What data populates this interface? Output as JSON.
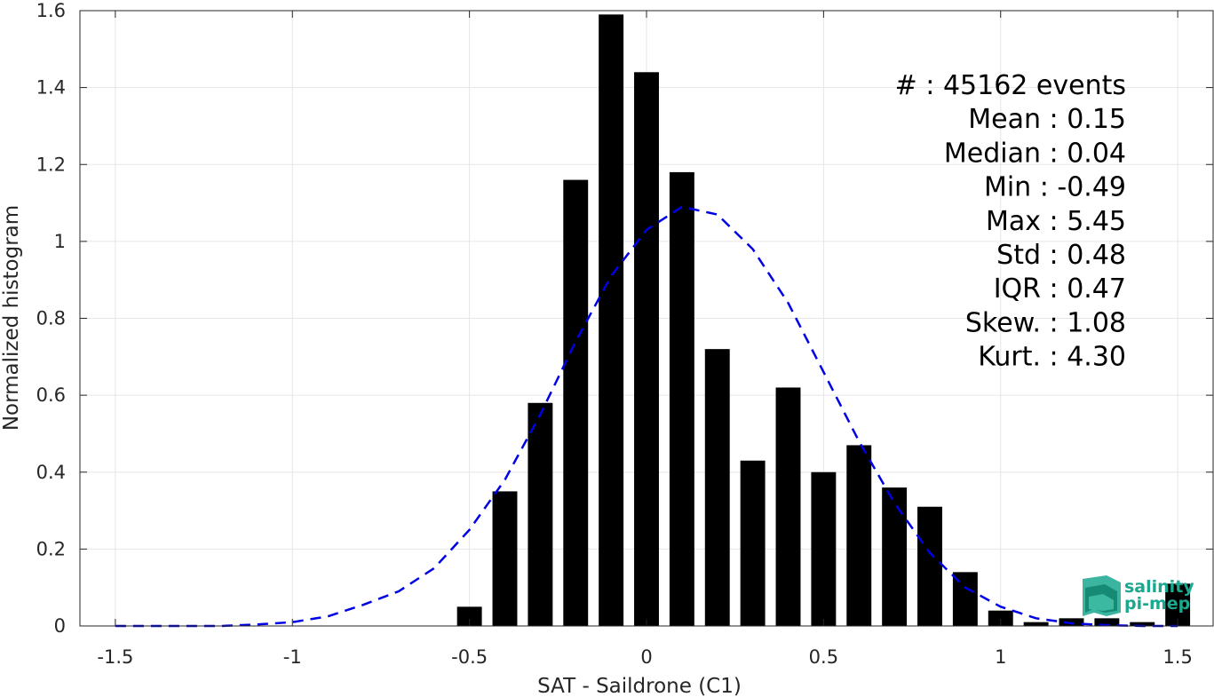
{
  "chart_data": {
    "type": "bar",
    "title": "",
    "xlabel": "SAT - Saildrone (C1)",
    "ylabel": "Normalized histogram",
    "xlim": [
      -1.6,
      1.6
    ],
    "ylim": [
      0,
      1.6
    ],
    "grid": true,
    "xticks": [
      -1.5,
      -1,
      -0.5,
      0,
      0.5,
      1,
      1.5
    ],
    "xtick_labels": [
      "-1.5",
      "-1",
      "-0.5",
      "0",
      "0.5",
      "1",
      "1.5"
    ],
    "yticks": [
      0,
      0.2,
      0.4,
      0.6,
      0.8,
      1,
      1.2,
      1.4,
      1.6
    ],
    "ytick_labels": [
      "0",
      "0.2",
      "0.4",
      "0.6",
      "0.8",
      "1",
      "1.2",
      "1.4",
      "1.6"
    ],
    "bar_color": "#000000",
    "bar_width": 0.07,
    "bins": [
      -0.5,
      -0.4,
      -0.3,
      -0.2,
      -0.1,
      0.0,
      0.1,
      0.2,
      0.3,
      0.4,
      0.5,
      0.6,
      0.7,
      0.8,
      0.9,
      1.0,
      1.1,
      1.2,
      1.3,
      1.4,
      1.5
    ],
    "values": [
      0.05,
      0.35,
      0.58,
      1.16,
      1.59,
      1.44,
      1.18,
      0.72,
      0.43,
      0.62,
      0.4,
      0.47,
      0.36,
      0.31,
      0.14,
      0.04,
      0.01,
      0.02,
      0.02,
      0.01,
      0.11
    ],
    "fit_curve": {
      "style": "dashed",
      "color": "#0000e6",
      "x": [
        -1.5,
        -1.4,
        -1.3,
        -1.2,
        -1.1,
        -1.0,
        -0.9,
        -0.8,
        -0.7,
        -0.6,
        -0.5,
        -0.4,
        -0.3,
        -0.2,
        -0.1,
        0.0,
        0.1,
        0.2,
        0.3,
        0.4,
        0.5,
        0.6,
        0.7,
        0.8,
        0.9,
        1.0,
        1.1,
        1.2,
        1.3,
        1.4,
        1.5
      ],
      "y": [
        0.0,
        0.0,
        0.0,
        0.0,
        0.004,
        0.01,
        0.025,
        0.055,
        0.09,
        0.15,
        0.25,
        0.38,
        0.55,
        0.74,
        0.91,
        1.03,
        1.09,
        1.07,
        0.98,
        0.84,
        0.66,
        0.48,
        0.32,
        0.19,
        0.1,
        0.05,
        0.02,
        0.007,
        0.002,
        0.0,
        0.0
      ]
    },
    "stats": [
      {
        "label": "#  : 45162 events"
      },
      {
        "label": "Mean : 0.15"
      },
      {
        "label": "Median : 0.04"
      },
      {
        "label": "Min : -0.49"
      },
      {
        "label": "Max : 5.45"
      },
      {
        "label": "Std : 0.48"
      },
      {
        "label": "IQR : 0.47"
      },
      {
        "label": "Skew. : 1.08"
      },
      {
        "label": "Kurt. : 4.30"
      }
    ]
  },
  "logo": {
    "line1": "salinity",
    "line2": "pi-mep",
    "color": "#1aa88f"
  }
}
